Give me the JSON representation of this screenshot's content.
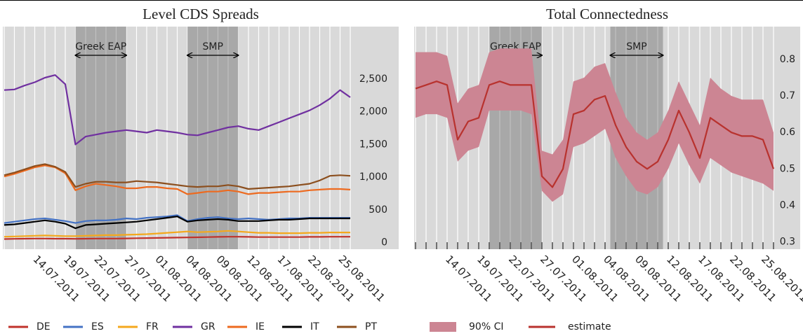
{
  "chart_data": [
    {
      "type": "line",
      "title": "Level CDS Spreads",
      "categories": [
        null,
        null,
        null,
        "14.07.2011",
        null,
        null,
        "19.07.2011",
        null,
        null,
        "22.07.2011",
        null,
        null,
        "27.07.2011",
        null,
        null,
        "01.08.2011",
        null,
        null,
        "04.08.2011",
        null,
        null,
        "09.08.2011",
        null,
        null,
        "12.08.2011",
        null,
        null,
        "17.08.2011",
        null,
        null,
        "22.08.2011",
        null,
        null,
        "25.08.2011",
        null
      ],
      "series": [
        {
          "name": "DE",
          "color": "#c0322b",
          "values": [
            55,
            58,
            60,
            62,
            62,
            60,
            60,
            58,
            60,
            62,
            62,
            63,
            65,
            68,
            70,
            72,
            75,
            78,
            80,
            82,
            85,
            88,
            90,
            90,
            88,
            85,
            85,
            85,
            85,
            85,
            88,
            88,
            90,
            90,
            90
          ]
        },
        {
          "name": "ES",
          "color": "#4472c4",
          "values": [
            300,
            320,
            340,
            360,
            370,
            350,
            330,
            300,
            330,
            340,
            340,
            350,
            370,
            360,
            380,
            390,
            400,
            420,
            330,
            360,
            380,
            390,
            370,
            360,
            370,
            360,
            350,
            360,
            370,
            370,
            380,
            380,
            380,
            380,
            380
          ]
        },
        {
          "name": "FR",
          "color": "#f4a81d",
          "values": [
            90,
            95,
            100,
            105,
            110,
            105,
            100,
            100,
            105,
            110,
            115,
            115,
            120,
            125,
            130,
            140,
            150,
            160,
            170,
            160,
            165,
            170,
            180,
            170,
            160,
            150,
            150,
            145,
            145,
            145,
            150,
            150,
            155,
            155,
            155
          ]
        },
        {
          "name": "GR",
          "color": "#7030a0",
          "values": [
            2330,
            2340,
            2400,
            2450,
            2520,
            2560,
            2420,
            1500,
            1620,
            1650,
            1680,
            1700,
            1720,
            1700,
            1680,
            1720,
            1700,
            1680,
            1650,
            1640,
            1680,
            1720,
            1760,
            1780,
            1740,
            1720,
            1780,
            1840,
            1900,
            1960,
            2020,
            2100,
            2200,
            2330,
            2220
          ]
        },
        {
          "name": "IE",
          "color": "#ed6a1f",
          "values": [
            1010,
            1050,
            1100,
            1150,
            1180,
            1150,
            1060,
            800,
            860,
            900,
            880,
            860,
            830,
            830,
            850,
            850,
            830,
            820,
            740,
            760,
            780,
            780,
            800,
            780,
            740,
            760,
            760,
            770,
            780,
            780,
            800,
            810,
            820,
            820,
            810
          ]
        },
        {
          "name": "IT",
          "color": "#000000",
          "values": [
            270,
            280,
            300,
            320,
            340,
            320,
            290,
            220,
            270,
            280,
            290,
            300,
            310,
            320,
            340,
            360,
            380,
            400,
            320,
            340,
            350,
            360,
            350,
            330,
            330,
            330,
            340,
            350,
            350,
            360,
            370,
            370,
            370,
            370,
            370
          ]
        },
        {
          "name": "PT",
          "color": "#8c4f1e",
          "values": [
            1030,
            1070,
            1120,
            1170,
            1200,
            1160,
            1080,
            850,
            900,
            930,
            930,
            920,
            920,
            940,
            930,
            920,
            900,
            880,
            860,
            850,
            860,
            860,
            880,
            860,
            820,
            830,
            840,
            850,
            860,
            880,
            900,
            950,
            1020,
            1030,
            1020
          ]
        }
      ],
      "ylim": [
        -100,
        3300
      ],
      "yticks": [
        0,
        500,
        {
          "value": 1000,
          "label": "1,000"
        },
        {
          "value": 1500,
          "label": "1,500"
        },
        {
          "value": 2000,
          "label": "2,000"
        },
        {
          "value": 2500,
          "label": "2,500"
        }
      ],
      "grid": true,
      "spans": [
        {
          "label": "Greek EAP",
          "from": 7,
          "to": 12
        },
        {
          "label": "SMP",
          "from": 18,
          "to": 23
        }
      ],
      "legend": "bottom"
    },
    {
      "type": "line",
      "title": "Total Connectedness",
      "categories": [
        null,
        null,
        null,
        "14.07.2011",
        null,
        null,
        "19.07.2011",
        null,
        null,
        "22.07.2011",
        null,
        null,
        "27.07.2011",
        null,
        null,
        "01.08.2011",
        null,
        null,
        "04.08.2011",
        null,
        null,
        "09.08.2011",
        null,
        null,
        "12.08.2011",
        null,
        null,
        "17.08.2011",
        null,
        null,
        "22.08.2011",
        null,
        null,
        "25.08.2011",
        null
      ],
      "series": [
        {
          "name": "90% CI",
          "color": "#cc8593",
          "lower": [
            0.64,
            0.65,
            0.65,
            0.64,
            0.52,
            0.55,
            0.56,
            0.66,
            0.66,
            0.66,
            0.66,
            0.65,
            0.44,
            0.41,
            0.43,
            0.56,
            0.57,
            0.59,
            0.61,
            0.53,
            0.48,
            0.44,
            0.43,
            0.45,
            0.5,
            0.57,
            0.51,
            0.46,
            0.53,
            0.51,
            0.49,
            0.48,
            0.47,
            0.46,
            0.44
          ],
          "upper": [
            0.82,
            0.82,
            0.82,
            0.81,
            0.68,
            0.72,
            0.73,
            0.82,
            0.83,
            0.83,
            0.83,
            0.83,
            0.55,
            0.54,
            0.58,
            0.74,
            0.75,
            0.78,
            0.79,
            0.71,
            0.64,
            0.6,
            0.58,
            0.6,
            0.66,
            0.74,
            0.68,
            0.62,
            0.75,
            0.72,
            0.7,
            0.69,
            0.69,
            0.69,
            0.6
          ]
        },
        {
          "name": "estimate",
          "color": "#b8322e",
          "values": [
            0.72,
            0.73,
            0.74,
            0.73,
            0.58,
            0.63,
            0.64,
            0.73,
            0.74,
            0.73,
            0.73,
            0.73,
            0.48,
            0.45,
            0.5,
            0.65,
            0.66,
            0.69,
            0.7,
            0.62,
            0.56,
            0.52,
            0.5,
            0.52,
            0.58,
            0.66,
            0.6,
            0.53,
            0.64,
            0.62,
            0.6,
            0.59,
            0.59,
            0.58,
            0.5
          ]
        }
      ],
      "ylim": [
        0.28,
        0.89
      ],
      "yticks": [
        0.3,
        0.4,
        0.5,
        0.6,
        0.7,
        0.8
      ],
      "grid": true,
      "spans": [
        {
          "label": "Greek EAP",
          "from": 7,
          "to": 12
        },
        {
          "label": "SMP",
          "from": 18.5,
          "to": 23.5
        }
      ],
      "legend": "bottom"
    }
  ]
}
